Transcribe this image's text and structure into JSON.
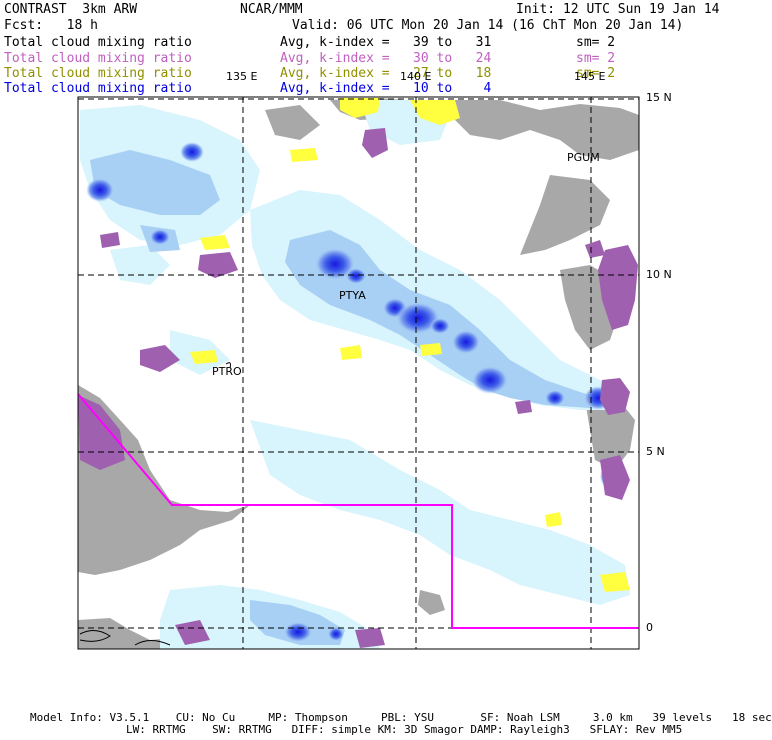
{
  "header": {
    "model_title": "CONTRAST  3km ARW",
    "org": "NCAR/MMM",
    "init": "Init: 12 UTC Sun 19 Jan 14",
    "fcst": "Fcst:   18 h",
    "valid": "Valid: 06 UTC Mon 20 Jan 14 (16 ChT Mon 20 Jan 14)"
  },
  "fields": [
    {
      "name": "Total cloud mixing ratio",
      "stat": "Avg, k-index =   39 to   31",
      "sm": "sm= 2",
      "color": "#000000"
    },
    {
      "name": "Total cloud mixing ratio",
      "stat": "Avg, k-index =   30 to   24",
      "sm": "sm= 2",
      "color": "#c060c0"
    },
    {
      "name": "Total cloud mixing ratio",
      "stat": "Avg, k-index =   27 to   18",
      "sm": "sm= 2",
      "color": "#909000"
    },
    {
      "name": "Total cloud mixing ratio",
      "stat": "Avg, k-index =   10 to    4",
      "sm": "",
      "color": "#0000e0"
    }
  ],
  "map": {
    "lon_labels": [
      "135 E",
      "140 E",
      "145 E"
    ],
    "lat_labels": [
      "15 N",
      "10 N",
      "5 N",
      "0"
    ],
    "stations": [
      "PGUM",
      "PTYA",
      "PTRO"
    ],
    "colors": {
      "land": "#a8a8a8",
      "light_cloud": "#d8f4fc",
      "mid_cloud": "#a8d0f4",
      "deep_cloud": "#6a8ef0",
      "core_cloud": "#1818e0",
      "ice_cloud": "#a060b0",
      "low_cloud": "#ffff40",
      "boundary": "#ff00ff"
    }
  },
  "footer": {
    "line1": "Model Info: V3.5.1    CU: No Cu     MP: Thompson     PBL: YSU       SF: Noah LSM     3.0 km   39 levels   18 sec",
    "line2": "LW: RRTMG    SW: RRTMG   DIFF: simple KM: 3D Smagor DAMP: Rayleigh3   SFLAY: Rev MM5"
  }
}
